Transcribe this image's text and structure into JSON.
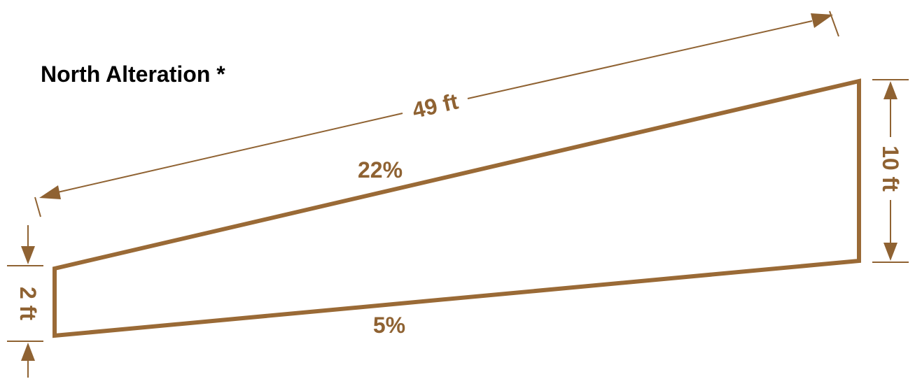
{
  "title": "North Alteration *",
  "colors": {
    "shape": "#9a6a36",
    "dimension": "#8f6232",
    "title": "#000000",
    "background": "#ffffff"
  },
  "dimensions": {
    "length": "49 ft",
    "right_height": "10 ft",
    "left_height": "2 ft"
  },
  "slopes": {
    "top": "22%",
    "bottom": "5%"
  }
}
